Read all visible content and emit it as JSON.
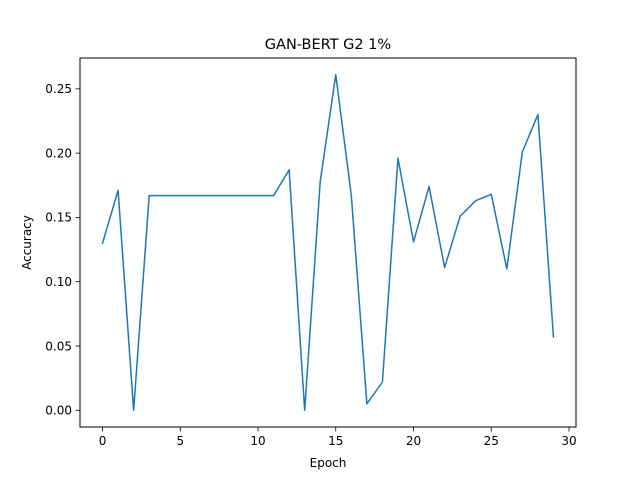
{
  "chart_data": {
    "type": "line",
    "title": "GAN-BERT G2 1%",
    "xlabel": "Epoch",
    "ylabel": "Accuracy",
    "xlim": [
      -1.45,
      30.45
    ],
    "ylim": [
      -0.013,
      0.274
    ],
    "x_ticks": [
      0,
      5,
      10,
      15,
      20,
      25,
      30
    ],
    "y_ticks": [
      0.0,
      0.05,
      0.1,
      0.15,
      0.2,
      0.25
    ],
    "y_tick_labels": [
      "0.00",
      "0.05",
      "0.10",
      "0.15",
      "0.20",
      "0.25"
    ],
    "grid": false,
    "series": [
      {
        "color": "#1f77b4",
        "x": [
          0,
          1,
          2,
          3,
          4,
          5,
          6,
          7,
          8,
          9,
          10,
          11,
          12,
          13,
          14,
          15,
          16,
          17,
          18,
          19,
          20,
          21,
          22,
          23,
          24,
          25,
          26,
          27,
          28,
          29
        ],
        "y": [
          0.13,
          0.171,
          0.0,
          0.167,
          0.167,
          0.167,
          0.167,
          0.167,
          0.167,
          0.167,
          0.167,
          0.167,
          0.187,
          0.0,
          0.178,
          0.261,
          0.167,
          0.005,
          0.022,
          0.196,
          0.131,
          0.174,
          0.111,
          0.151,
          0.163,
          0.168,
          0.11,
          0.201,
          0.23,
          0.057
        ]
      }
    ]
  }
}
